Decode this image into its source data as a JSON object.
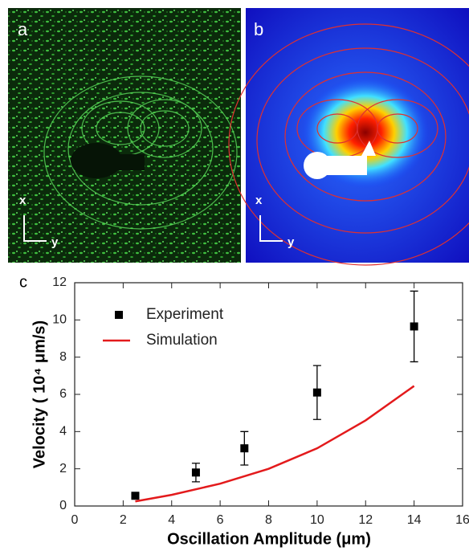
{
  "panels": [
    {
      "label": "a",
      "axis_x": "x",
      "axis_y": "y"
    },
    {
      "label": "b",
      "axis_x": "x",
      "axis_y": "y"
    }
  ],
  "chart_data": {
    "type": "line",
    "panel_label": "c",
    "x_label": "Oscillation Amplitude (μm)",
    "y_label": "Velocity ( 10⁴ μm/s)",
    "xlim": [
      0,
      16
    ],
    "ylim": [
      0,
      12
    ],
    "xticks": [
      0,
      2,
      4,
      6,
      8,
      10,
      12,
      14,
      16
    ],
    "yticks": [
      0,
      2,
      4,
      6,
      8,
      10,
      12
    ],
    "legend": "upper left",
    "series": [
      {
        "name": "Experiment",
        "style": "markers",
        "color": "#000000",
        "x": [
          2.5,
          5,
          7,
          10,
          14
        ],
        "values": [
          0.55,
          1.8,
          3.1,
          6.1,
          9.65
        ],
        "errors": [
          0.1,
          0.5,
          0.9,
          1.45,
          1.9
        ]
      },
      {
        "name": "Simulation",
        "style": "line",
        "color": "#e31a1c",
        "x": [
          2.5,
          4,
          6,
          8,
          10,
          12,
          14
        ],
        "values": [
          0.25,
          0.6,
          1.2,
          2.0,
          3.1,
          4.6,
          6.45
        ]
      }
    ]
  }
}
